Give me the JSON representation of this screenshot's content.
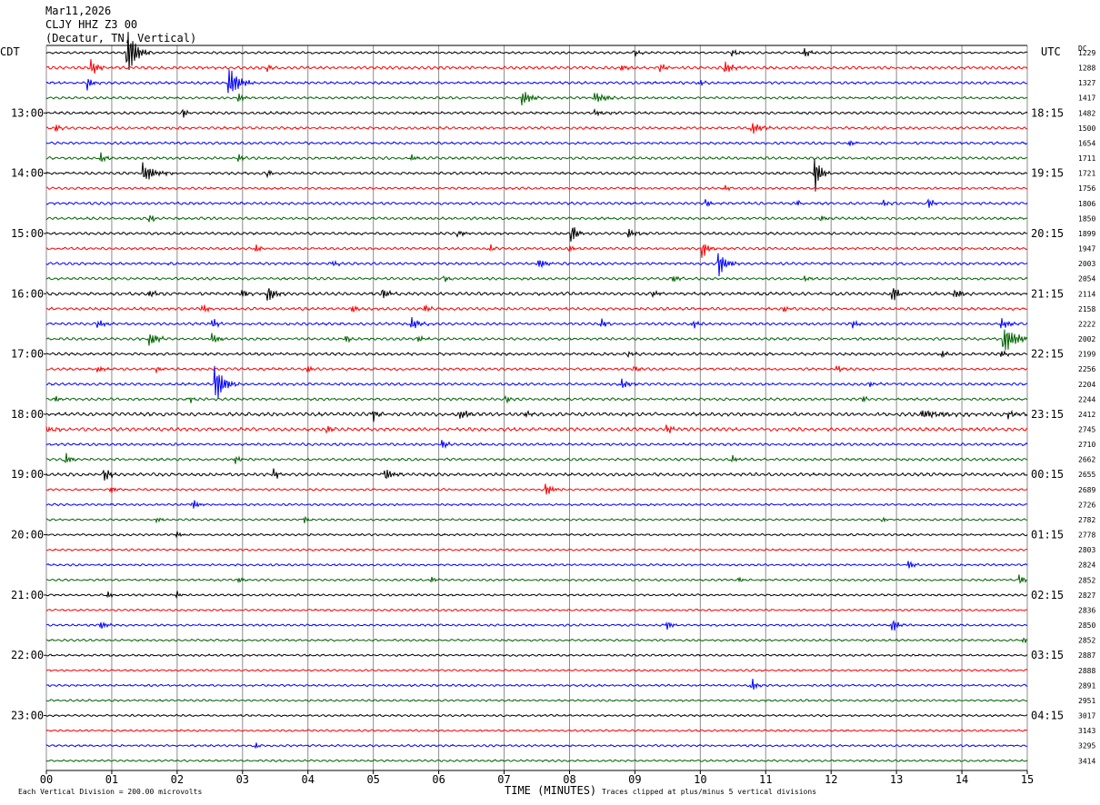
{
  "header": {
    "date": "Mar11,2026",
    "station": "CLJY HHZ Z3 00",
    "location": "(Decatur, TN, Vertical)",
    "left_zone": "CDT",
    "right_zone": "UTC",
    "dc_label": "DC"
  },
  "footer": {
    "division_note": "Each Vertical Division =  200.00 microvolts",
    "xlabel": "TIME (MINUTES)",
    "clip_note": "Traces clipped at plus/minus 5 vertical divisions"
  },
  "chart_data": {
    "type": "helicorder",
    "xlabel": "TIME (MINUTES)",
    "xlim": [
      0,
      15
    ],
    "x_ticks": [
      "00",
      "01",
      "02",
      "03",
      "04",
      "05",
      "06",
      "07",
      "08",
      "09",
      "10",
      "11",
      "12",
      "13",
      "14",
      "15"
    ],
    "grid": "vertical lines every minute",
    "trace_color_cycle": [
      "#000000",
      "#ff0000",
      "#0000ff",
      "#006400"
    ],
    "left_time_labels": [
      {
        "row": 4,
        "label": "13:00"
      },
      {
        "row": 8,
        "label": "14:00"
      },
      {
        "row": 12,
        "label": "15:00"
      },
      {
        "row": 16,
        "label": "16:00"
      },
      {
        "row": 20,
        "label": "17:00"
      },
      {
        "row": 24,
        "label": "18:00"
      },
      {
        "row": 28,
        "label": "19:00"
      },
      {
        "row": 32,
        "label": "20:00"
      },
      {
        "row": 36,
        "label": "21:00"
      },
      {
        "row": 40,
        "label": "22:00"
      },
      {
        "row": 44,
        "label": "23:00"
      }
    ],
    "right_time_labels": [
      {
        "row": 4,
        "label": "18:15"
      },
      {
        "row": 8,
        "label": "19:15"
      },
      {
        "row": 12,
        "label": "20:15"
      },
      {
        "row": 16,
        "label": "21:15"
      },
      {
        "row": 20,
        "label": "22:15"
      },
      {
        "row": 24,
        "label": "23:15"
      },
      {
        "row": 28,
        "label": "00:15"
      },
      {
        "row": 32,
        "label": "01:15"
      },
      {
        "row": 36,
        "label": "02:15"
      },
      {
        "row": 40,
        "label": "03:15"
      },
      {
        "row": 44,
        "label": "04:15"
      }
    ],
    "dc_offsets": [
      "1229",
      "1288",
      "1327",
      "1417",
      "1482",
      "1500",
      "1654",
      "1711",
      "1721",
      "1756",
      "1806",
      "1850",
      "1899",
      "1947",
      "2003",
      "2054",
      "2114",
      "2158",
      "2222",
      "2002",
      "2199",
      "2256",
      "2204",
      "2244",
      "2412",
      "2745",
      "2710",
      "2662",
      "2655",
      "2689",
      "2726",
      "2782",
      "2778",
      "2803",
      "2824",
      "2852",
      "2827",
      "2836",
      "2850",
      "2852",
      "2887",
      "2888",
      "2891",
      "2951",
      "3017",
      "3143",
      "3295",
      "3414"
    ],
    "noise_level": [
      0.9,
      1.1,
      1.0,
      0.9,
      1.0,
      1.0,
      1.0,
      1.0,
      1.0,
      0.9,
      1.0,
      1.0,
      1.0,
      1.0,
      1.0,
      1.0,
      1.2,
      1.1,
      1.0,
      1.0,
      1.1,
      1.0,
      1.0,
      1.0,
      1.4,
      1.3,
      1.0,
      1.0,
      1.2,
      0.8,
      0.8,
      0.8,
      0.8,
      0.8,
      0.8,
      0.8,
      0.8,
      0.8,
      0.8,
      0.8,
      0.8,
      0.8,
      0.8,
      0.8,
      0.8,
      0.8,
      0.8,
      0.8
    ],
    "events": [
      {
        "row": 0,
        "minute": 1.25,
        "amp": 7,
        "dur": 0.35
      },
      {
        "row": 0,
        "minute": 9.0,
        "amp": 1.2,
        "dur": 0.2
      },
      {
        "row": 0,
        "minute": 10.5,
        "amp": 1.2,
        "dur": 0.2
      },
      {
        "row": 0,
        "minute": 11.6,
        "amp": 1.5,
        "dur": 0.2
      },
      {
        "row": 1,
        "minute": 0.7,
        "amp": 2.5,
        "dur": 0.25
      },
      {
        "row": 1,
        "minute": 3.4,
        "amp": 1.2,
        "dur": 0.15
      },
      {
        "row": 1,
        "minute": 8.8,
        "amp": 1.0,
        "dur": 0.2
      },
      {
        "row": 1,
        "minute": 9.4,
        "amp": 1.2,
        "dur": 0.2
      },
      {
        "row": 1,
        "minute": 10.4,
        "amp": 1.8,
        "dur": 0.3
      },
      {
        "row": 2,
        "minute": 0.65,
        "amp": 2.0,
        "dur": 0.2
      },
      {
        "row": 2,
        "minute": 2.8,
        "amp": 5,
        "dur": 0.4
      },
      {
        "row": 2,
        "minute": 10.0,
        "amp": 1.0,
        "dur": 0.15
      },
      {
        "row": 3,
        "minute": 2.95,
        "amp": 1.5,
        "dur": 0.2
      },
      {
        "row": 3,
        "minute": 7.3,
        "amp": 2.5,
        "dur": 0.3
      },
      {
        "row": 3,
        "minute": 8.4,
        "amp": 1.8,
        "dur": 0.4
      },
      {
        "row": 4,
        "minute": 2.1,
        "amp": 1.2,
        "dur": 0.2
      },
      {
        "row": 4,
        "minute": 8.4,
        "amp": 1.0,
        "dur": 0.3
      },
      {
        "row": 5,
        "minute": 0.15,
        "amp": 1.2,
        "dur": 0.15
      },
      {
        "row": 5,
        "minute": 10.8,
        "amp": 2.0,
        "dur": 0.35
      },
      {
        "row": 6,
        "minute": 12.3,
        "amp": 1.0,
        "dur": 0.15
      },
      {
        "row": 7,
        "minute": 0.85,
        "amp": 1.5,
        "dur": 0.2
      },
      {
        "row": 7,
        "minute": 2.95,
        "amp": 1.2,
        "dur": 0.15
      },
      {
        "row": 7,
        "minute": 5.6,
        "amp": 0.8,
        "dur": 0.2
      },
      {
        "row": 8,
        "minute": 1.5,
        "amp": 3.0,
        "dur": 0.45
      },
      {
        "row": 8,
        "minute": 3.4,
        "amp": 1.0,
        "dur": 0.15
      },
      {
        "row": 8,
        "minute": 11.75,
        "amp": 6,
        "dur": 0.25
      },
      {
        "row": 9,
        "minute": 10.4,
        "amp": 0.8,
        "dur": 0.15
      },
      {
        "row": 10,
        "minute": 10.1,
        "amp": 1.2,
        "dur": 0.15
      },
      {
        "row": 10,
        "minute": 11.5,
        "amp": 1.0,
        "dur": 0.15
      },
      {
        "row": 10,
        "minute": 12.8,
        "amp": 1.2,
        "dur": 0.2
      },
      {
        "row": 10,
        "minute": 13.5,
        "amp": 1.8,
        "dur": 0.15
      },
      {
        "row": 11,
        "minute": 1.6,
        "amp": 1.5,
        "dur": 0.15
      },
      {
        "row": 11,
        "minute": 11.85,
        "amp": 1.2,
        "dur": 0.2
      },
      {
        "row": 12,
        "minute": 8.05,
        "amp": 3.0,
        "dur": 0.2
      },
      {
        "row": 12,
        "minute": 8.9,
        "amp": 1.5,
        "dur": 0.3
      },
      {
        "row": 12,
        "minute": 6.3,
        "amp": 0.8,
        "dur": 0.3
      },
      {
        "row": 13,
        "minute": 3.2,
        "amp": 1.5,
        "dur": 0.2
      },
      {
        "row": 13,
        "minute": 6.8,
        "amp": 1.0,
        "dur": 0.15
      },
      {
        "row": 13,
        "minute": 8.0,
        "amp": 1.2,
        "dur": 0.15
      },
      {
        "row": 13,
        "minute": 10.05,
        "amp": 2.5,
        "dur": 0.2
      },
      {
        "row": 14,
        "minute": 4.4,
        "amp": 0.8,
        "dur": 0.2
      },
      {
        "row": 14,
        "minute": 7.55,
        "amp": 1.5,
        "dur": 0.2
      },
      {
        "row": 14,
        "minute": 10.3,
        "amp": 3.5,
        "dur": 0.3
      },
      {
        "row": 15,
        "minute": 6.1,
        "amp": 1.0,
        "dur": 0.15
      },
      {
        "row": 15,
        "minute": 9.6,
        "amp": 1.2,
        "dur": 0.2
      },
      {
        "row": 15,
        "minute": 11.6,
        "amp": 1.0,
        "dur": 0.2
      },
      {
        "row": 16,
        "minute": 1.6,
        "amp": 1.0,
        "dur": 0.2
      },
      {
        "row": 16,
        "minute": 3.0,
        "amp": 1.5,
        "dur": 0.2
      },
      {
        "row": 16,
        "minute": 3.4,
        "amp": 2.5,
        "dur": 0.3
      },
      {
        "row": 16,
        "minute": 5.15,
        "amp": 2.2,
        "dur": 0.2
      },
      {
        "row": 16,
        "minute": 9.3,
        "amp": 1.0,
        "dur": 0.2
      },
      {
        "row": 16,
        "minute": 12.95,
        "amp": 3.0,
        "dur": 0.2
      },
      {
        "row": 16,
        "minute": 13.9,
        "amp": 1.2,
        "dur": 0.3
      },
      {
        "row": 17,
        "minute": 2.4,
        "amp": 1.5,
        "dur": 0.2
      },
      {
        "row": 17,
        "minute": 4.7,
        "amp": 1.5,
        "dur": 0.15
      },
      {
        "row": 17,
        "minute": 5.8,
        "amp": 1.2,
        "dur": 0.2
      },
      {
        "row": 17,
        "minute": 11.3,
        "amp": 1.0,
        "dur": 0.15
      },
      {
        "row": 18,
        "minute": 0.8,
        "amp": 1.2,
        "dur": 0.3
      },
      {
        "row": 18,
        "minute": 2.55,
        "amp": 2.0,
        "dur": 0.15
      },
      {
        "row": 18,
        "minute": 5.6,
        "amp": 1.8,
        "dur": 0.3
      },
      {
        "row": 18,
        "minute": 8.5,
        "amp": 1.5,
        "dur": 0.2
      },
      {
        "row": 18,
        "minute": 9.9,
        "amp": 1.2,
        "dur": 0.2
      },
      {
        "row": 18,
        "minute": 12.35,
        "amp": 1.2,
        "dur": 0.2
      },
      {
        "row": 18,
        "minute": 14.6,
        "amp": 2.0,
        "dur": 0.3
      },
      {
        "row": 19,
        "minute": 1.6,
        "amp": 2.2,
        "dur": 0.3
      },
      {
        "row": 19,
        "minute": 2.55,
        "amp": 2.0,
        "dur": 0.2
      },
      {
        "row": 19,
        "minute": 4.6,
        "amp": 1.0,
        "dur": 0.15
      },
      {
        "row": 19,
        "minute": 5.7,
        "amp": 1.0,
        "dur": 0.2
      },
      {
        "row": 19,
        "minute": 14.65,
        "amp": 4.5,
        "dur": 0.45
      },
      {
        "row": 20,
        "minute": 8.9,
        "amp": 1.0,
        "dur": 0.2
      },
      {
        "row": 20,
        "minute": 13.7,
        "amp": 1.5,
        "dur": 0.15
      },
      {
        "row": 20,
        "minute": 14.6,
        "amp": 1.2,
        "dur": 0.2
      },
      {
        "row": 21,
        "minute": 0.8,
        "amp": 1.2,
        "dur": 0.2
      },
      {
        "row": 21,
        "minute": 1.7,
        "amp": 1.0,
        "dur": 0.15
      },
      {
        "row": 21,
        "minute": 4.0,
        "amp": 1.0,
        "dur": 0.2
      },
      {
        "row": 21,
        "minute": 9.0,
        "amp": 1.2,
        "dur": 0.2
      },
      {
        "row": 21,
        "minute": 12.1,
        "amp": 1.2,
        "dur": 0.2
      },
      {
        "row": 22,
        "minute": 2.6,
        "amp": 6,
        "dur": 0.35
      },
      {
        "row": 22,
        "minute": 8.8,
        "amp": 1.5,
        "dur": 0.3
      },
      {
        "row": 22,
        "minute": 12.6,
        "amp": 1.0,
        "dur": 0.2
      },
      {
        "row": 23,
        "minute": 0.15,
        "amp": 1.2,
        "dur": 0.15
      },
      {
        "row": 23,
        "minute": 2.2,
        "amp": 1.0,
        "dur": 0.15
      },
      {
        "row": 23,
        "minute": 7.05,
        "amp": 1.0,
        "dur": 0.15
      },
      {
        "row": 23,
        "minute": 12.5,
        "amp": 1.0,
        "dur": 0.15
      },
      {
        "row": 24,
        "minute": 5.0,
        "amp": 2.0,
        "dur": 0.15
      },
      {
        "row": 24,
        "minute": 6.35,
        "amp": 1.5,
        "dur": 0.3
      },
      {
        "row": 24,
        "minute": 7.35,
        "amp": 1.0,
        "dur": 0.15
      },
      {
        "row": 24,
        "minute": 13.4,
        "amp": 1.2,
        "dur": 1.0
      },
      {
        "row": 24,
        "minute": 14.7,
        "amp": 1.2,
        "dur": 0.3
      },
      {
        "row": 25,
        "minute": 0.0,
        "amp": 1.2,
        "dur": 0.3
      },
      {
        "row": 25,
        "minute": 4.3,
        "amp": 1.2,
        "dur": 0.2
      },
      {
        "row": 25,
        "minute": 9.5,
        "amp": 1.5,
        "dur": 0.2
      },
      {
        "row": 26,
        "minute": 6.05,
        "amp": 2.0,
        "dur": 0.15
      },
      {
        "row": 27,
        "minute": 0.3,
        "amp": 2.0,
        "dur": 0.2
      },
      {
        "row": 27,
        "minute": 2.9,
        "amp": 1.2,
        "dur": 0.2
      },
      {
        "row": 27,
        "minute": 10.5,
        "amp": 1.0,
        "dur": 0.2
      },
      {
        "row": 28,
        "minute": 0.9,
        "amp": 2.0,
        "dur": 0.25
      },
      {
        "row": 28,
        "minute": 3.5,
        "amp": 1.5,
        "dur": 0.15
      },
      {
        "row": 28,
        "minute": 5.2,
        "amp": 2.0,
        "dur": 0.3
      },
      {
        "row": 29,
        "minute": 1.0,
        "amp": 1.2,
        "dur": 0.15
      },
      {
        "row": 29,
        "minute": 7.65,
        "amp": 2.0,
        "dur": 0.25
      },
      {
        "row": 30,
        "minute": 2.25,
        "amp": 1.5,
        "dur": 0.2
      },
      {
        "row": 31,
        "minute": 1.7,
        "amp": 1.0,
        "dur": 0.15
      },
      {
        "row": 31,
        "minute": 3.95,
        "amp": 1.2,
        "dur": 0.15
      },
      {
        "row": 31,
        "minute": 12.8,
        "amp": 0.8,
        "dur": 0.15
      },
      {
        "row": 32,
        "minute": 2.0,
        "amp": 1.0,
        "dur": 0.2
      },
      {
        "row": 34,
        "minute": 13.2,
        "amp": 1.5,
        "dur": 0.2
      },
      {
        "row": 35,
        "minute": 2.95,
        "amp": 1.0,
        "dur": 0.15
      },
      {
        "row": 35,
        "minute": 5.9,
        "amp": 1.0,
        "dur": 0.15
      },
      {
        "row": 35,
        "minute": 10.6,
        "amp": 0.8,
        "dur": 0.15
      },
      {
        "row": 35,
        "minute": 14.9,
        "amp": 1.5,
        "dur": 0.2
      },
      {
        "row": 36,
        "minute": 0.95,
        "amp": 1.2,
        "dur": 0.15
      },
      {
        "row": 36,
        "minute": 2.0,
        "amp": 1.0,
        "dur": 0.1
      },
      {
        "row": 38,
        "minute": 0.85,
        "amp": 1.0,
        "dur": 0.25
      },
      {
        "row": 38,
        "minute": 9.5,
        "amp": 1.2,
        "dur": 0.2
      },
      {
        "row": 38,
        "minute": 12.95,
        "amp": 2.0,
        "dur": 0.2
      },
      {
        "row": 39,
        "minute": 14.95,
        "amp": 1.2,
        "dur": 0.1
      },
      {
        "row": 42,
        "minute": 10.8,
        "amp": 2.0,
        "dur": 0.2
      },
      {
        "row": 46,
        "minute": 3.2,
        "amp": 1.0,
        "dur": 0.15
      }
    ]
  }
}
